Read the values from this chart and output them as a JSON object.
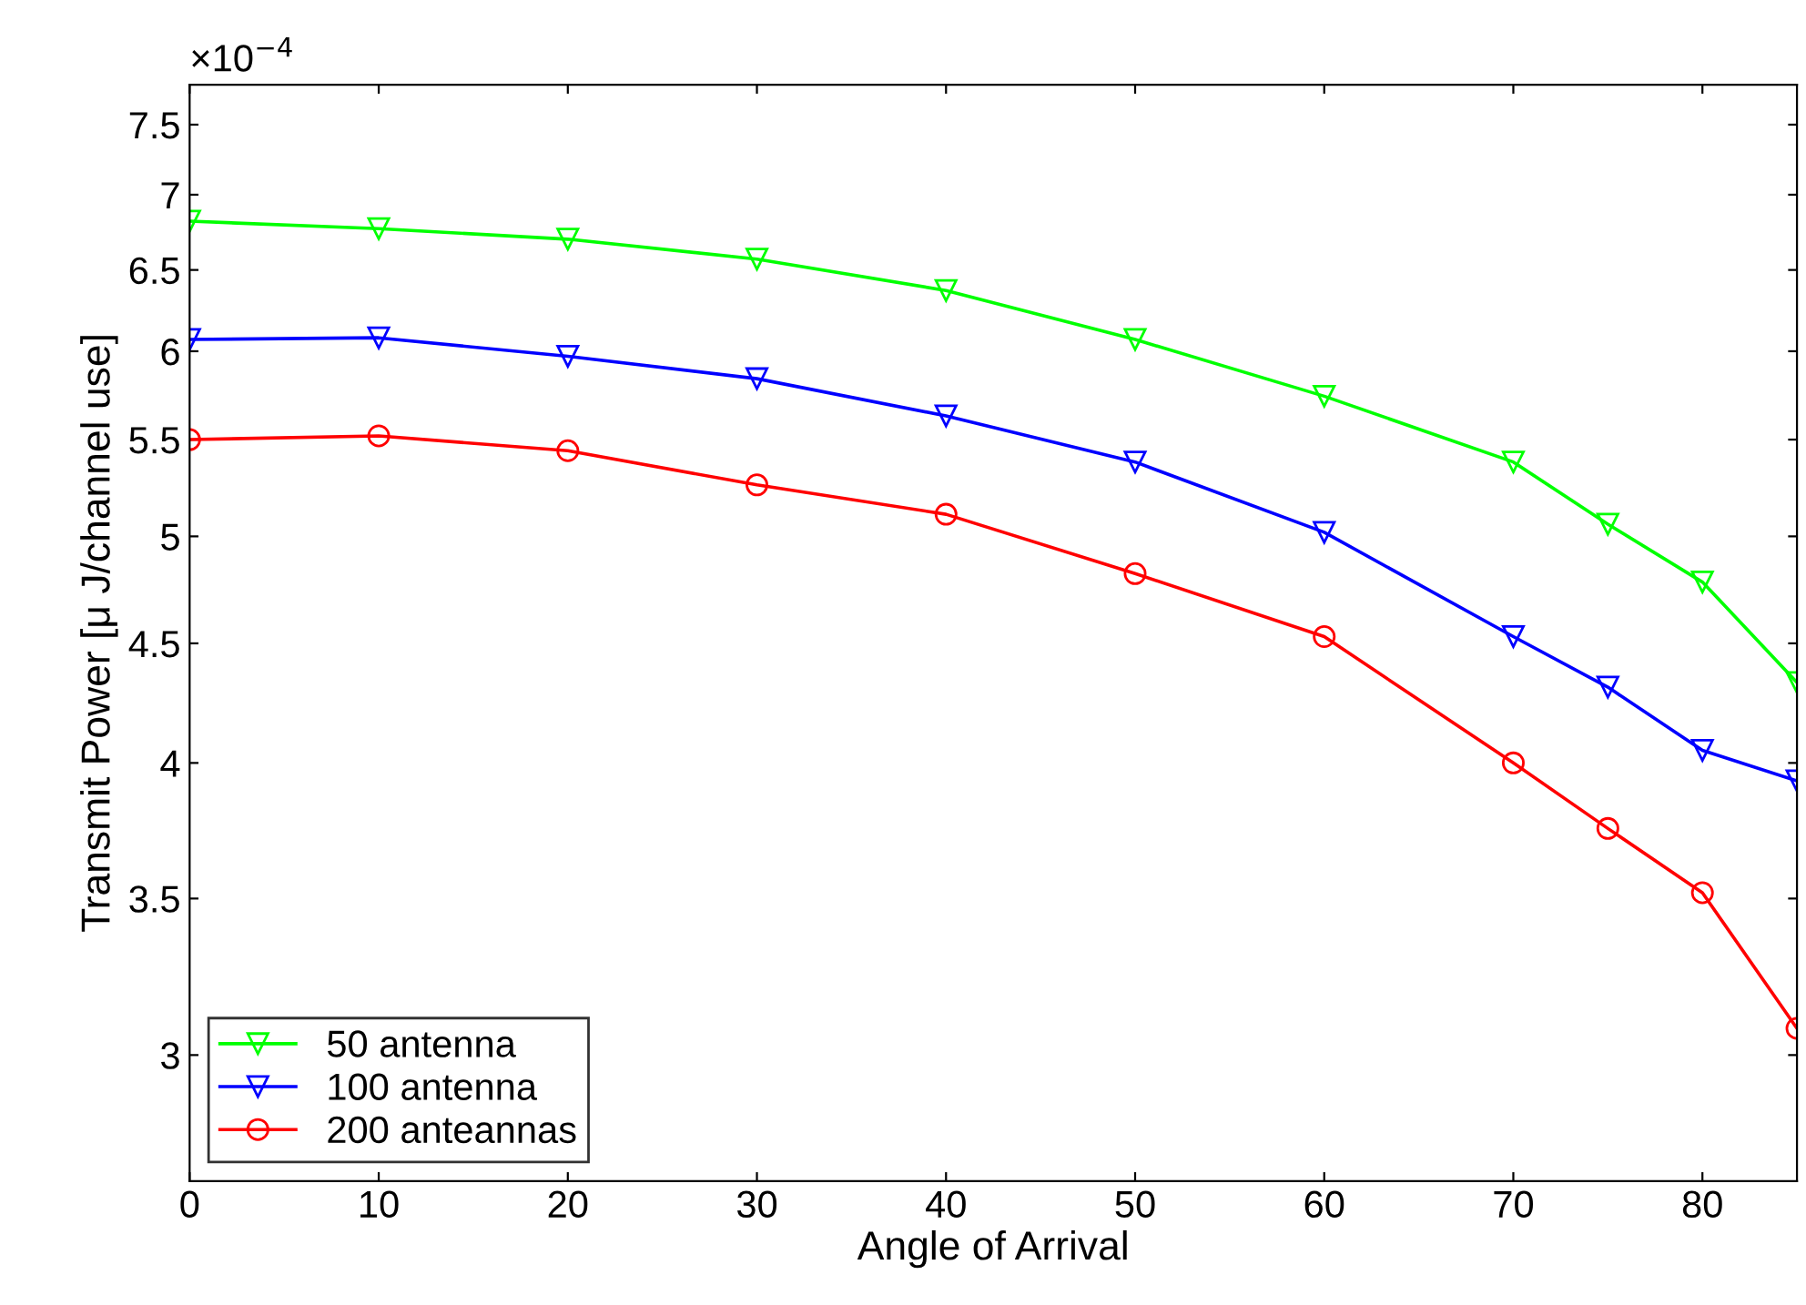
{
  "chart_data": {
    "type": "line",
    "xlabel": "Angle of Arrival",
    "ylabel": "Transmit Power [μ J/channel use]",
    "annotations": [
      "×10$^{−4}$"
    ],
    "x": [
      0,
      10,
      20,
      30,
      40,
      50,
      60,
      70,
      75,
      80,
      85
    ],
    "series": [
      {
        "name": "50 antenna",
        "color": "#00ff00",
        "marker": "triangle",
        "values": [
          6.82,
          6.77,
          6.7,
          6.57,
          6.37,
          6.07,
          5.74,
          5.38,
          5.06,
          4.78,
          4.33
        ]
      },
      {
        "name": "100 antenna",
        "color": "#0000ff",
        "marker": "triangle",
        "values": [
          6.07,
          6.08,
          5.97,
          5.84,
          5.63,
          5.38,
          5.02,
          4.53,
          4.31,
          4.05,
          3.93
        ]
      },
      {
        "name": "200 anteannas",
        "color": "#ff0000",
        "marker": "circle",
        "values": [
          5.5,
          5.52,
          5.44,
          5.26,
          5.11,
          4.82,
          4.53,
          4.0,
          3.75,
          3.52,
          3.08
        ]
      }
    ],
    "log": "y",
    "xlim": [
      0,
      85
    ],
    "ylim": [
      2.65,
      7.8
    ],
    "xticks": [
      0,
      10,
      20,
      30,
      40,
      50,
      60,
      70,
      80
    ],
    "yticks": [
      3,
      3.5,
      4,
      4.5,
      5,
      5.5,
      6,
      6.5,
      7,
      7.5
    ],
    "legend": "bottom left",
    "grid": false,
    "line_style": "solid"
  }
}
